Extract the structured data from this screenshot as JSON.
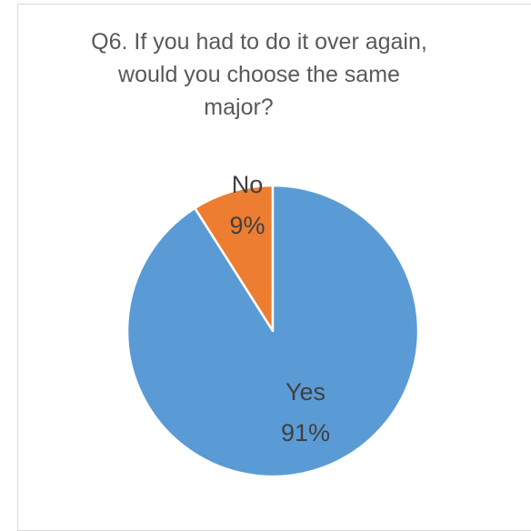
{
  "chart_data": {
    "type": "pie",
    "title_lines": [
      "Q6. If you had to do it over again,",
      "would you choose the same",
      "major?"
    ],
    "slices": [
      {
        "label": "No",
        "value": 9,
        "value_label": "9%",
        "color": "#ed7d31"
      },
      {
        "label": "Yes",
        "value": 91,
        "value_label": "91%",
        "color": "#5b9bd5"
      }
    ],
    "start_angle_deg": 0,
    "direction": "counterclockwise",
    "slice_border_color": "#ffffff"
  }
}
